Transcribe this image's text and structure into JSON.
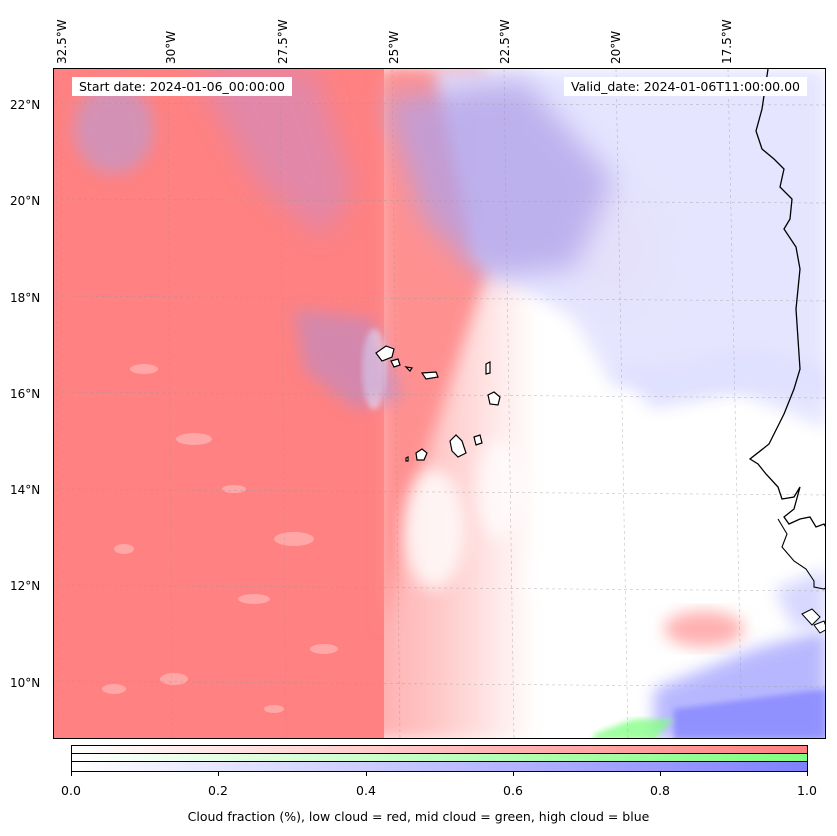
{
  "map": {
    "start_date": "Start date: 2024-01-06_00:00:00",
    "valid_date": "Valid_date: 2024-01-06T11:00:00.00",
    "longitude_labels": [
      "32.5°W",
      "30°W",
      "27.5°W",
      "25°W",
      "22.5°W",
      "20°W",
      "17.5°W"
    ],
    "latitude_labels": [
      "22°N",
      "20°N",
      "18°N",
      "16°N",
      "14°N",
      "12°N",
      "10°N"
    ],
    "colors": {
      "low_cloud": "#ff8080",
      "mid_cloud": "#80ff80",
      "high_cloud": "#8080ff",
      "coastline": "#000000"
    }
  },
  "colorbar": {
    "tick_labels": [
      "0.0",
      "0.2",
      "0.4",
      "0.6",
      "0.8",
      "1.0"
    ],
    "label": "Cloud fraction (%), low cloud = red, mid cloud = green, high cloud = blue"
  }
}
